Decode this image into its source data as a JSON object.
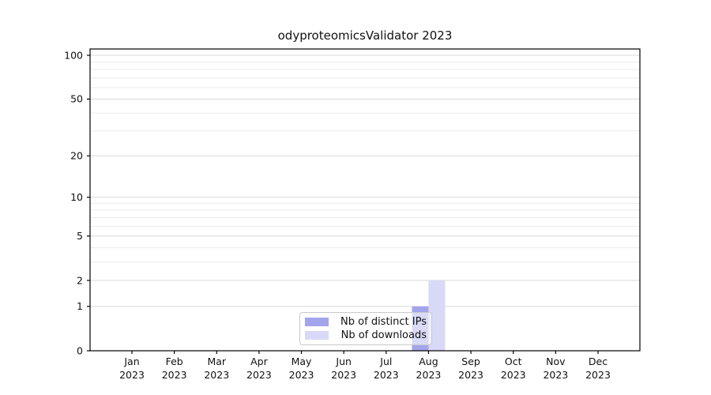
{
  "chart_data": {
    "type": "bar",
    "title": "odyproteomicsValidator 2023",
    "year": "2023",
    "categories": [
      "Jan",
      "Feb",
      "Mar",
      "Apr",
      "May",
      "Jun",
      "Jul",
      "Aug",
      "Sep",
      "Oct",
      "Nov",
      "Dec"
    ],
    "series": [
      {
        "name": "Nb of distinct IPs",
        "color": "#a4a4ec",
        "values": [
          0,
          0,
          0,
          0,
          0,
          0,
          0,
          1,
          0,
          0,
          0,
          0
        ]
      },
      {
        "name": "Nb of downloads",
        "color": "#d9d9f7",
        "values": [
          0,
          0,
          0,
          0,
          0,
          0,
          0,
          2,
          0,
          0,
          0,
          0
        ]
      }
    ],
    "yscale": "log1p",
    "ylim": [
      0,
      110.5
    ],
    "y_major_ticks": [
      0,
      1,
      2,
      5,
      10,
      20,
      50,
      100
    ],
    "y_minor_ticks": [
      3,
      4,
      6,
      7,
      8,
      9,
      30,
      40,
      60,
      70,
      80,
      90
    ],
    "xlabel": "",
    "ylabel": "",
    "grid": "horizontal",
    "legend_position": "lower center",
    "colors": {
      "background": "#ffffff",
      "axis": "#000000",
      "major_grid": "#d8d8d8",
      "minor_grid": "#ececec",
      "tick_text": "#111111"
    }
  }
}
